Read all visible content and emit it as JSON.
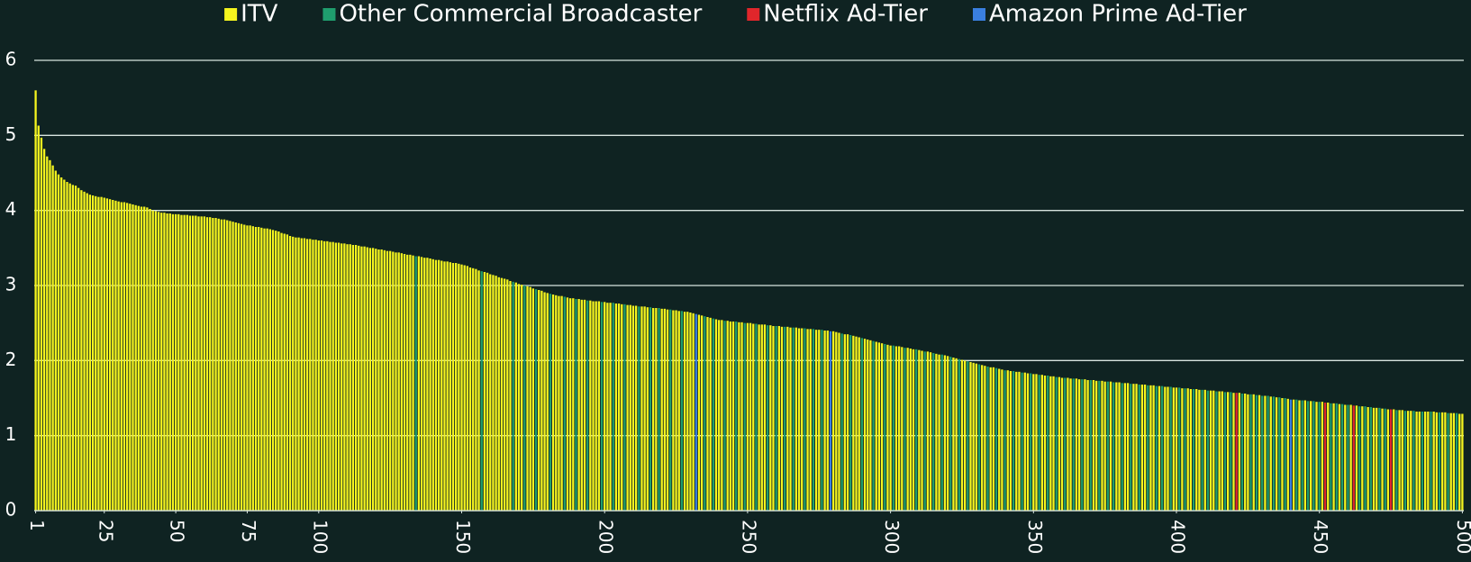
{
  "chart_data": {
    "type": "bar",
    "legend": "top",
    "grid": true,
    "xlim": [
      0.5,
      500.5
    ],
    "xticks": [
      1,
      25,
      50,
      75,
      100,
      150,
      200,
      250,
      300,
      350,
      400,
      450,
      500
    ],
    "ylim": [
      0,
      6
    ],
    "yticks": [
      0,
      1,
      2,
      3,
      4,
      5,
      6
    ],
    "series": [
      {
        "name": "ITV",
        "color": "#f5f51e",
        "x": [
          1,
          2,
          3,
          4,
          5,
          6,
          7,
          8,
          9,
          10,
          11,
          12,
          13,
          14,
          15,
          16,
          17,
          18,
          19,
          20,
          21,
          22,
          23,
          24,
          25,
          26,
          27,
          28,
          29,
          30,
          31,
          32,
          33,
          34,
          35,
          36,
          37,
          38,
          39,
          40,
          41,
          42,
          43,
          44,
          45,
          46,
          47,
          48,
          49,
          50,
          51,
          52,
          53,
          54,
          55,
          56,
          57,
          58,
          59,
          60,
          61,
          62,
          63,
          64,
          65,
          66,
          67,
          68,
          69,
          70,
          71,
          72,
          73,
          74,
          75,
          76,
          77,
          78,
          79,
          80,
          81,
          82,
          83,
          84,
          85,
          86,
          87,
          88,
          89,
          90,
          91,
          92,
          93,
          94,
          95,
          96,
          97,
          98,
          99,
          100,
          101,
          102,
          103,
          104,
          105,
          106,
          107,
          108,
          109,
          110,
          111,
          112,
          113,
          114,
          115,
          116,
          117,
          118,
          119,
          120,
          121,
          122,
          123,
          124,
          125,
          126,
          127,
          128,
          129,
          130,
          131,
          132,
          133,
          135,
          136,
          137,
          138,
          139,
          140,
          141,
          142,
          143,
          144,
          145,
          146,
          147,
          148,
          149,
          150,
          151,
          152,
          153,
          154,
          155,
          156,
          158,
          159,
          160,
          161,
          162,
          163,
          164,
          165,
          166,
          167,
          169,
          170,
          171,
          173,
          174,
          175,
          177,
          178,
          179,
          180,
          182,
          183,
          184,
          185,
          187,
          188,
          189,
          191,
          192,
          193,
          195,
          196,
          197,
          198,
          200,
          201,
          202,
          204,
          205,
          206,
          208,
          209,
          210,
          211,
          213,
          214,
          215,
          217,
          218,
          220,
          221,
          222,
          224,
          225,
          226,
          228,
          229,
          230,
          231,
          233,
          234,
          236,
          237,
          239,
          240,
          241,
          243,
          244,
          245,
          247,
          248,
          250,
          251,
          252,
          254,
          255,
          256,
          258,
          259,
          261,
          262,
          264,
          265,
          267,
          268,
          269,
          271,
          272,
          274,
          275,
          277,
          278,
          280,
          281,
          282,
          284,
          285,
          287,
          288,
          289,
          291,
          292,
          293,
          295,
          296,
          297,
          299,
          300,
          302,
          303,
          304,
          306,
          307,
          308,
          310,
          311,
          313,
          314,
          316,
          317,
          319,
          320,
          322,
          323,
          325,
          326,
          328,
          329,
          330,
          332,
          333,
          335,
          336,
          338,
          339,
          341,
          342,
          344,
          345,
          347,
          348,
          350,
          351,
          353,
          354,
          356,
          357,
          359,
          360,
          362,
          363,
          365,
          366,
          368,
          369,
          371,
          372,
          374,
          375,
          377,
          379,
          380,
          382,
          383,
          385,
          386,
          388,
          389,
          391,
          392,
          394,
          396,
          397,
          399,
          400,
          402,
          404,
          405,
          407,
          408,
          410,
          412,
          413,
          415,
          416,
          418,
          420,
          422,
          424,
          425,
          427,
          429,
          431,
          433,
          435,
          437,
          439,
          441,
          443,
          445,
          447,
          449,
          451,
          453,
          455,
          457,
          459,
          461,
          463,
          465,
          467,
          469,
          470,
          472,
          474,
          476,
          478,
          479,
          481,
          482,
          484,
          485,
          487,
          488,
          490,
          491,
          493,
          494,
          496,
          497,
          499,
          500
        ],
        "values": [
          5.6,
          5.13,
          4.97,
          4.82,
          4.72,
          4.67,
          4.6,
          4.53,
          4.48,
          4.44,
          4.41,
          4.38,
          4.36,
          4.34,
          4.33,
          4.3,
          4.27,
          4.25,
          4.23,
          4.21,
          4.2,
          4.19,
          4.18,
          4.18,
          4.17,
          4.16,
          4.15,
          4.14,
          4.13,
          4.12,
          4.11,
          4.11,
          4.1,
          4.09,
          4.08,
          4.07,
          4.06,
          4.05,
          4.05,
          4.04,
          4.02,
          4.0,
          3.99,
          3.98,
          3.97,
          3.97,
          3.96,
          3.96,
          3.95,
          3.95,
          3.95,
          3.94,
          3.94,
          3.94,
          3.93,
          3.93,
          3.93,
          3.92,
          3.92,
          3.92,
          3.91,
          3.91,
          3.9,
          3.9,
          3.89,
          3.88,
          3.88,
          3.87,
          3.86,
          3.85,
          3.84,
          3.83,
          3.82,
          3.81,
          3.8,
          3.8,
          3.79,
          3.78,
          3.78,
          3.77,
          3.76,
          3.76,
          3.75,
          3.74,
          3.73,
          3.72,
          3.7,
          3.69,
          3.68,
          3.66,
          3.65,
          3.64,
          3.64,
          3.63,
          3.63,
          3.62,
          3.62,
          3.61,
          3.61,
          3.6,
          3.6,
          3.59,
          3.59,
          3.58,
          3.58,
          3.57,
          3.57,
          3.56,
          3.56,
          3.55,
          3.55,
          3.54,
          3.54,
          3.53,
          3.52,
          3.52,
          3.51,
          3.5,
          3.5,
          3.49,
          3.48,
          3.48,
          3.47,
          3.46,
          3.46,
          3.45,
          3.44,
          3.44,
          3.43,
          3.42,
          3.41,
          3.41,
          3.4,
          3.39,
          3.38,
          3.37,
          3.37,
          3.36,
          3.35,
          3.34,
          3.34,
          3.33,
          3.32,
          3.32,
          3.31,
          3.3,
          3.3,
          3.29,
          3.28,
          3.27,
          3.26,
          3.24,
          3.23,
          3.22,
          3.2,
          3.18,
          3.17,
          3.15,
          3.14,
          3.13,
          3.11,
          3.1,
          3.09,
          3.08,
          3.06,
          3.04,
          3.02,
          3.01,
          2.99,
          2.98,
          2.96,
          2.94,
          2.93,
          2.91,
          2.9,
          2.88,
          2.87,
          2.86,
          2.86,
          2.84,
          2.83,
          2.83,
          2.82,
          2.81,
          2.81,
          2.8,
          2.79,
          2.79,
          2.79,
          2.78,
          2.77,
          2.77,
          2.76,
          2.76,
          2.75,
          2.74,
          2.74,
          2.73,
          2.73,
          2.72,
          2.72,
          2.71,
          2.7,
          2.7,
          2.69,
          2.69,
          2.68,
          2.67,
          2.67,
          2.66,
          2.65,
          2.65,
          2.64,
          2.63,
          2.61,
          2.6,
          2.58,
          2.57,
          2.55,
          2.54,
          2.54,
          2.53,
          2.52,
          2.52,
          2.51,
          2.51,
          2.5,
          2.5,
          2.49,
          2.48,
          2.48,
          2.48,
          2.47,
          2.46,
          2.46,
          2.45,
          2.45,
          2.44,
          2.44,
          2.43,
          2.43,
          2.42,
          2.42,
          2.41,
          2.41,
          2.4,
          2.4,
          2.39,
          2.38,
          2.37,
          2.35,
          2.35,
          2.33,
          2.32,
          2.31,
          2.29,
          2.28,
          2.27,
          2.25,
          2.24,
          2.23,
          2.21,
          2.2,
          2.19,
          2.19,
          2.18,
          2.17,
          2.16,
          2.15,
          2.14,
          2.13,
          2.12,
          2.11,
          2.09,
          2.08,
          2.07,
          2.06,
          2.04,
          2.03,
          2.01,
          2.0,
          1.98,
          1.97,
          1.96,
          1.94,
          1.93,
          1.91,
          1.91,
          1.89,
          1.88,
          1.87,
          1.86,
          1.85,
          1.85,
          1.84,
          1.83,
          1.82,
          1.82,
          1.81,
          1.8,
          1.79,
          1.79,
          1.78,
          1.77,
          1.77,
          1.76,
          1.76,
          1.75,
          1.75,
          1.74,
          1.74,
          1.73,
          1.73,
          1.72,
          1.72,
          1.71,
          1.71,
          1.7,
          1.7,
          1.69,
          1.69,
          1.68,
          1.68,
          1.67,
          1.67,
          1.66,
          1.65,
          1.65,
          1.64,
          1.64,
          1.63,
          1.63,
          1.62,
          1.62,
          1.61,
          1.61,
          1.6,
          1.6,
          1.59,
          1.59,
          1.58,
          1.57,
          1.57,
          1.56,
          1.55,
          1.55,
          1.54,
          1.53,
          1.52,
          1.51,
          1.5,
          1.49,
          1.48,
          1.47,
          1.47,
          1.46,
          1.45,
          1.45,
          1.44,
          1.43,
          1.42,
          1.41,
          1.41,
          1.4,
          1.39,
          1.38,
          1.37,
          1.37,
          1.36,
          1.35,
          1.35,
          1.34,
          1.34,
          1.33,
          1.33,
          1.32,
          1.32,
          1.32,
          1.32,
          1.32,
          1.31,
          1.31,
          1.31,
          1.3,
          1.3,
          1.29,
          1.29
        ]
      },
      {
        "name": "Other Commercial Broadcaster",
        "color": "#1f9e6e",
        "x": [
          134,
          157,
          168,
          172,
          176,
          181,
          186,
          190,
          194,
          199,
          203,
          207,
          212,
          216,
          219,
          223,
          227,
          235,
          238,
          242,
          246,
          249,
          253,
          257,
          260,
          263,
          266,
          270,
          273,
          276,
          283,
          286,
          290,
          294,
          298,
          301,
          305,
          309,
          312,
          315,
          318,
          321,
          324,
          327,
          331,
          334,
          337,
          340,
          343,
          346,
          349,
          352,
          355,
          358,
          361,
          364,
          367,
          370,
          373,
          376,
          378,
          381,
          384,
          387,
          390,
          393,
          395,
          398,
          401,
          403,
          406,
          409,
          411,
          414,
          417,
          419,
          423,
          426,
          428,
          430,
          432,
          434,
          436,
          438,
          442,
          444,
          446,
          448,
          450,
          454,
          456,
          458,
          460,
          464,
          466,
          468,
          471,
          473,
          477,
          480,
          483,
          486,
          489,
          492,
          495,
          498
        ],
        "values": [
          3.39,
          3.19,
          3.05,
          3.0,
          2.95,
          2.89,
          2.85,
          2.82,
          2.8,
          2.78,
          2.77,
          2.75,
          2.72,
          2.71,
          2.7,
          2.68,
          2.66,
          2.59,
          2.56,
          2.53,
          2.52,
          2.5,
          2.49,
          2.47,
          2.46,
          2.45,
          2.44,
          2.43,
          2.42,
          2.41,
          2.36,
          2.34,
          2.3,
          2.26,
          2.22,
          2.2,
          2.17,
          2.15,
          2.12,
          2.1,
          2.08,
          2.05,
          2.02,
          1.99,
          1.95,
          1.92,
          1.9,
          1.87,
          1.86,
          1.84,
          1.83,
          1.81,
          1.8,
          1.78,
          1.77,
          1.76,
          1.75,
          1.74,
          1.73,
          1.72,
          1.71,
          1.7,
          1.69,
          1.68,
          1.67,
          1.66,
          1.66,
          1.65,
          1.64,
          1.63,
          1.62,
          1.61,
          1.6,
          1.59,
          1.58,
          1.58,
          1.56,
          1.55,
          1.54,
          1.53,
          1.53,
          1.52,
          1.51,
          1.5,
          1.48,
          1.47,
          1.46,
          1.46,
          1.45,
          1.43,
          1.43,
          1.42,
          1.41,
          1.39,
          1.39,
          1.38,
          1.37,
          1.36,
          1.34,
          1.33,
          1.33,
          1.32,
          1.32,
          1.31,
          1.3,
          1.3
        ]
      },
      {
        "name": "Netflix Ad-Tier",
        "color": "#e0262b",
        "x": [
          421,
          452,
          462,
          475
        ],
        "values": [
          1.57,
          1.44,
          1.4,
          1.35
        ]
      },
      {
        "name": "Amazon Prime Ad-Tier",
        "color": "#3a7fe0",
        "x": [
          232,
          279,
          440
        ],
        "values": [
          2.62,
          2.39,
          1.48
        ]
      }
    ]
  }
}
